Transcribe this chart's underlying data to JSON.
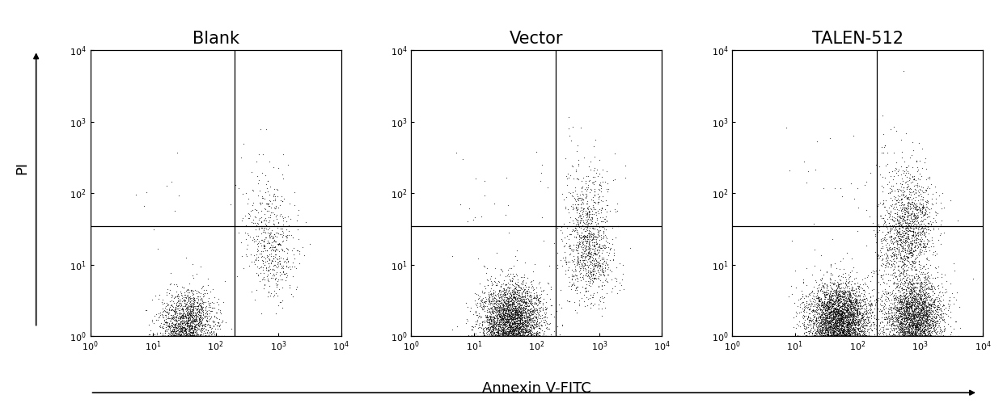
{
  "titles": [
    "Blank",
    "Vector",
    "TALEN-512"
  ],
  "xlabel": "Annexin V-FITC",
  "ylabel": "PI",
  "xlim": [
    1.0,
    10000.0
  ],
  "ylim": [
    1.0,
    10000.0
  ],
  "background_color": "#ffffff",
  "dot_color": "#000000",
  "quadrant_line_x": 200,
  "quadrant_line_y": 35,
  "title_fontsize": 15,
  "label_fontsize": 13,
  "tick_fontsize": 8,
  "panels": [
    {
      "name": "Blank",
      "clusters": [
        {
          "x_mean": 1.55,
          "x_std": 0.22,
          "y_mean": 0.15,
          "y_std": 0.25,
          "n": 1800,
          "alpha": 0.7,
          "s": 0.8
        },
        {
          "x_mean": 2.9,
          "x_std": 0.2,
          "y_mean": 1.1,
          "y_std": 0.28,
          "n": 350,
          "alpha": 0.7,
          "s": 0.8
        },
        {
          "x_mean": 2.85,
          "x_std": 0.18,
          "y_mean": 1.75,
          "y_std": 0.28,
          "n": 150,
          "alpha": 0.7,
          "s": 0.8
        },
        {
          "x_mean": 2.7,
          "x_std": 0.25,
          "y_mean": 2.1,
          "y_std": 0.4,
          "n": 30,
          "alpha": 0.7,
          "s": 0.8
        },
        {
          "x_mean": 1.2,
          "x_std": 0.3,
          "y_mean": 1.8,
          "y_std": 0.5,
          "n": 10,
          "alpha": 0.7,
          "s": 0.8
        }
      ]
    },
    {
      "name": "Vector",
      "clusters": [
        {
          "x_mean": 1.6,
          "x_std": 0.25,
          "y_mean": 0.18,
          "y_std": 0.28,
          "n": 3500,
          "alpha": 0.7,
          "s": 0.8
        },
        {
          "x_mean": 2.85,
          "x_std": 0.2,
          "y_mean": 1.1,
          "y_std": 0.3,
          "n": 700,
          "alpha": 0.7,
          "s": 0.8
        },
        {
          "x_mean": 2.8,
          "x_std": 0.18,
          "y_mean": 1.72,
          "y_std": 0.3,
          "n": 300,
          "alpha": 0.7,
          "s": 0.8
        },
        {
          "x_mean": 2.7,
          "x_std": 0.3,
          "y_mean": 2.1,
          "y_std": 0.45,
          "n": 60,
          "alpha": 0.7,
          "s": 0.8
        },
        {
          "x_mean": 1.3,
          "x_std": 0.35,
          "y_mean": 1.9,
          "y_std": 0.5,
          "n": 20,
          "alpha": 0.7,
          "s": 0.8
        }
      ]
    },
    {
      "name": "TALEN-512",
      "clusters": [
        {
          "x_mean": 1.7,
          "x_std": 0.25,
          "y_mean": 0.2,
          "y_std": 0.28,
          "n": 4000,
          "alpha": 0.7,
          "s": 0.8
        },
        {
          "x_mean": 2.9,
          "x_std": 0.22,
          "y_mean": 0.22,
          "y_std": 0.3,
          "n": 3000,
          "alpha": 0.7,
          "s": 0.8
        },
        {
          "x_mean": 2.85,
          "x_std": 0.2,
          "y_mean": 1.7,
          "y_std": 0.32,
          "n": 700,
          "alpha": 0.7,
          "s": 0.8
        },
        {
          "x_mean": 2.7,
          "x_std": 0.22,
          "y_mean": 1.2,
          "y_std": 0.3,
          "n": 600,
          "alpha": 0.7,
          "s": 0.8
        },
        {
          "x_mean": 2.6,
          "x_std": 0.3,
          "y_mean": 2.2,
          "y_std": 0.45,
          "n": 80,
          "alpha": 0.7,
          "s": 0.8
        },
        {
          "x_mean": 1.4,
          "x_std": 0.35,
          "y_mean": 2.0,
          "y_std": 0.5,
          "n": 20,
          "alpha": 0.7,
          "s": 0.8
        }
      ]
    }
  ]
}
